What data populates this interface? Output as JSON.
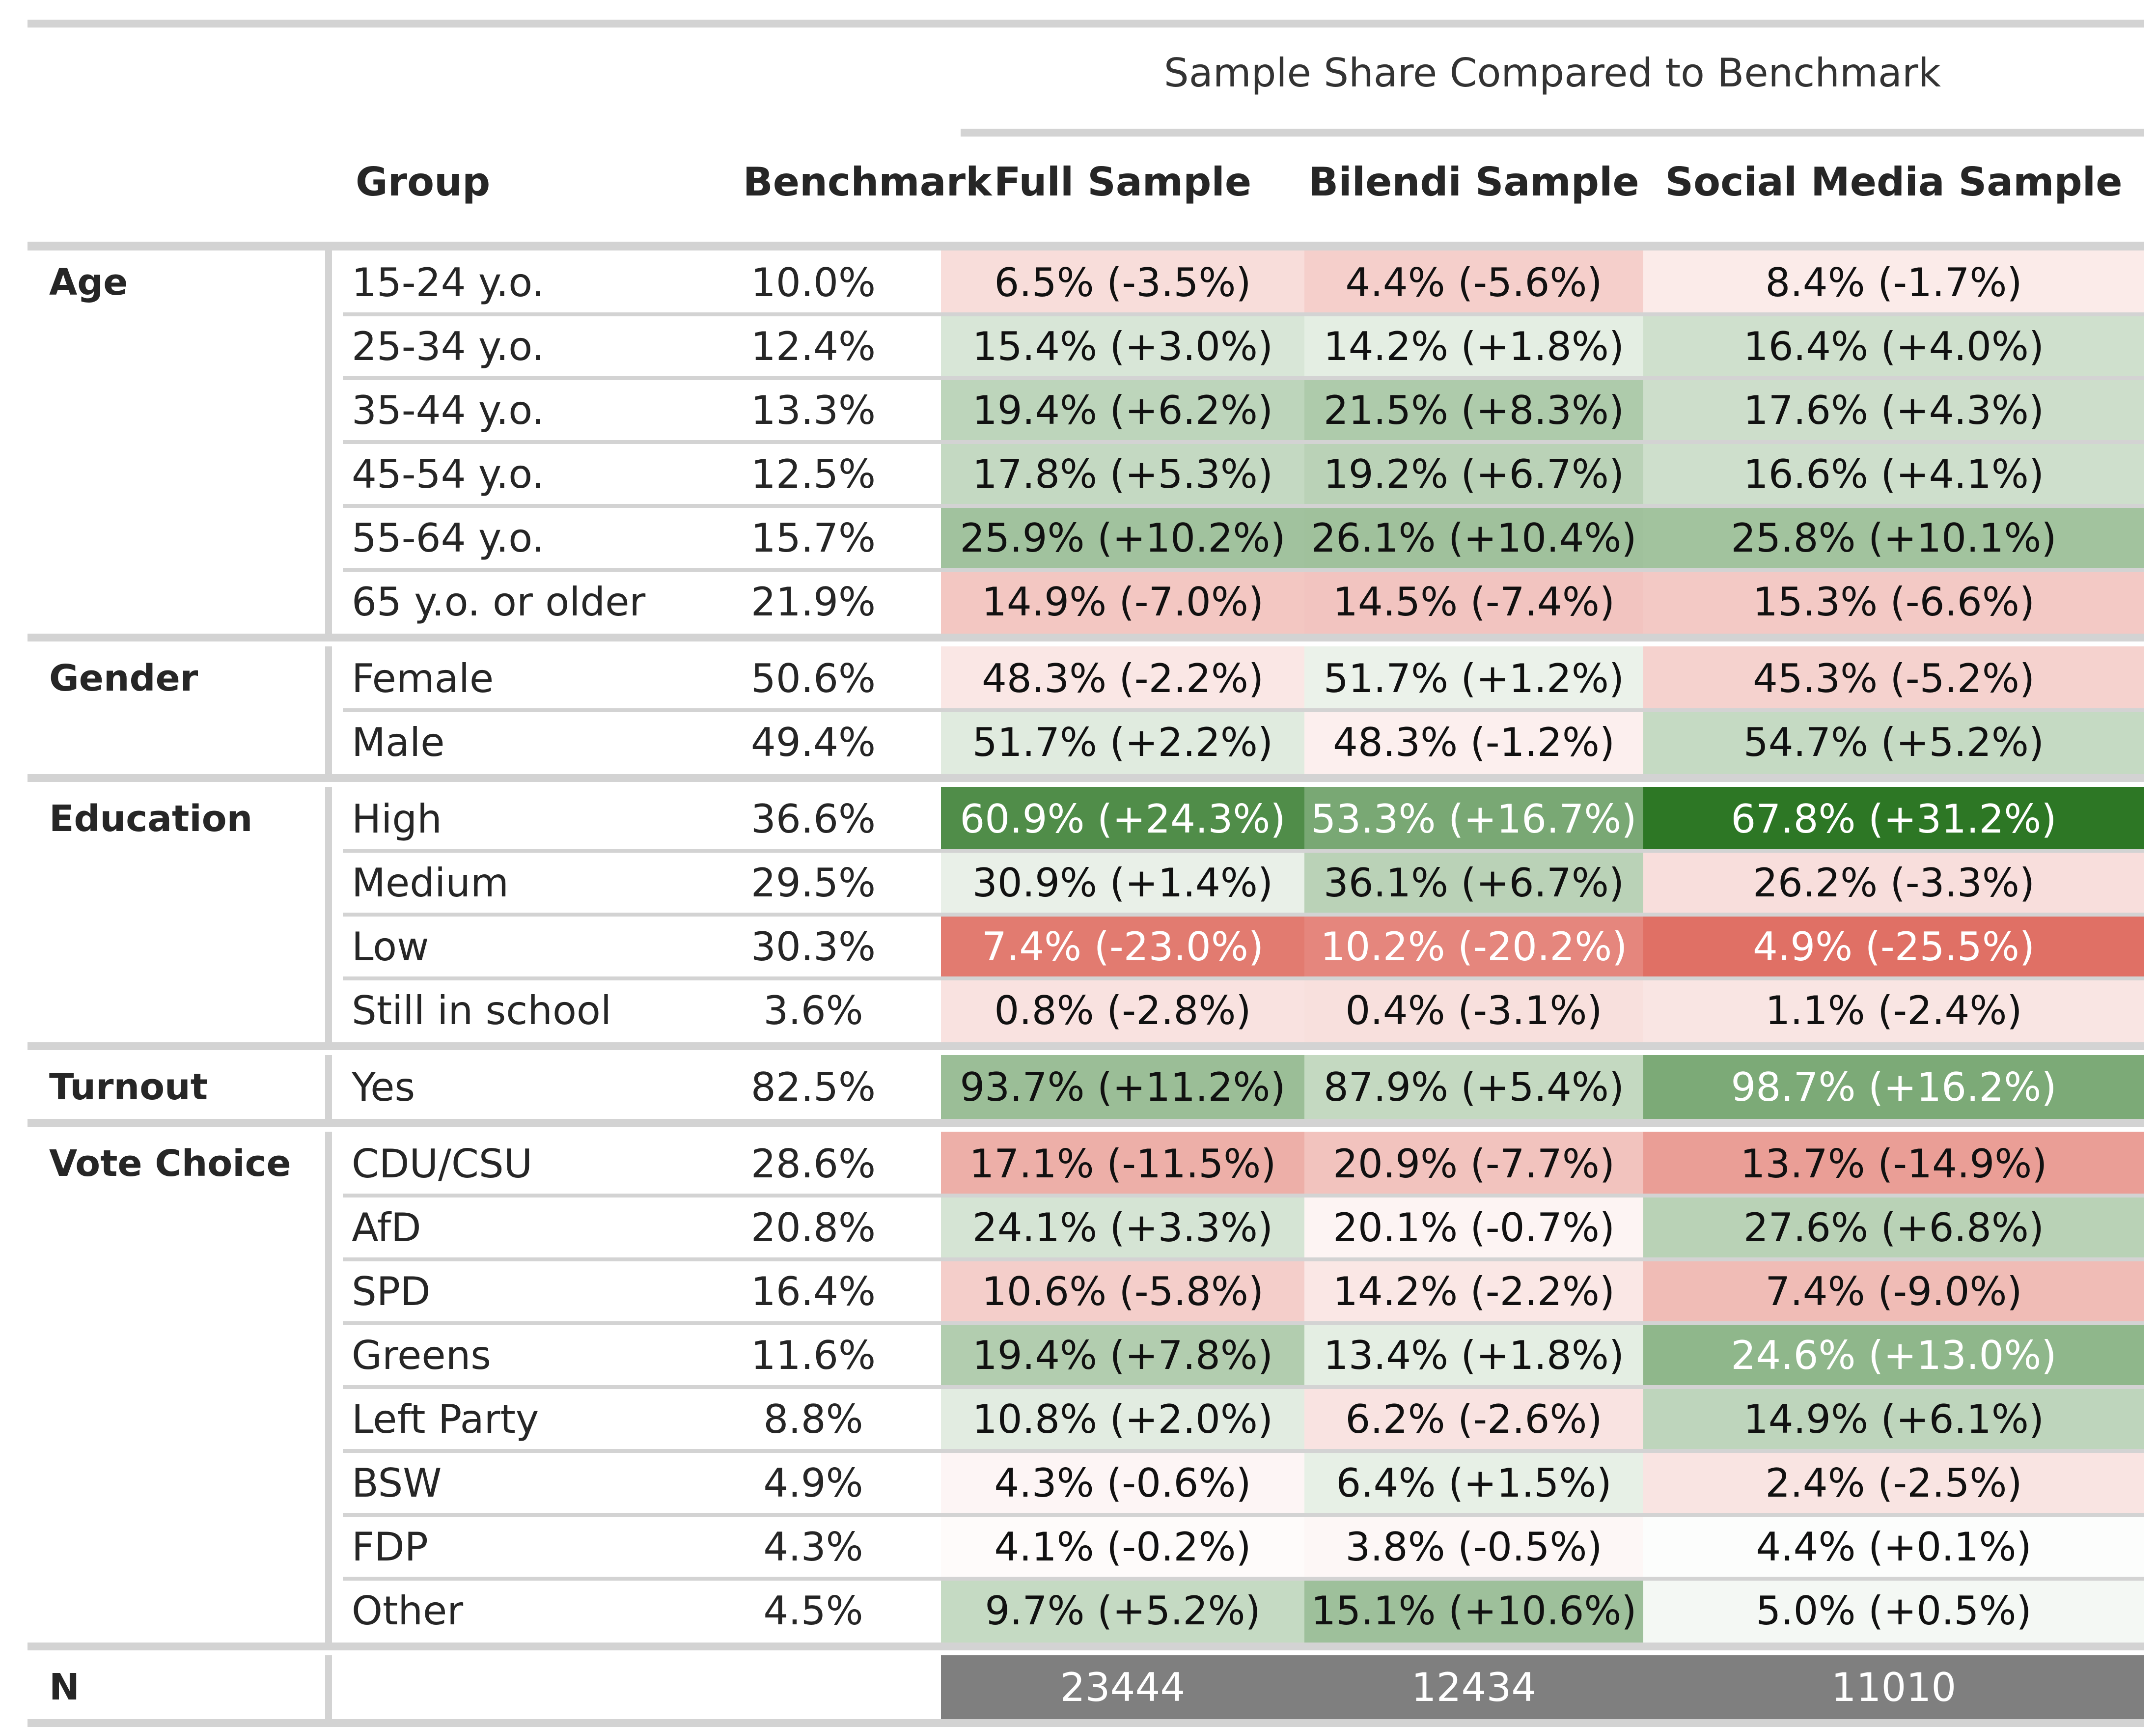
{
  "table": {
    "spanner_label": "Sample Share Compared to Benchmark",
    "columns": {
      "group": "Group",
      "benchmark": "Benchmark",
      "full": "Full Sample",
      "bilendi": "Bilendi Sample",
      "social": "Social Media Sample"
    },
    "sections": [
      {
        "label": "Age",
        "rows": [
          {
            "group": "15-24 y.o.",
            "benchmark": "10.0%",
            "full": "6.5% (-3.5%)",
            "bilendi": "4.4% (-5.6%)",
            "social": "8.4% (-1.7%)",
            "full_diff": -3.5,
            "bilendi_diff": -5.6,
            "social_diff": -1.7
          },
          {
            "group": "25-34 y.o.",
            "benchmark": "12.4%",
            "full": "15.4% (+3.0%)",
            "bilendi": "14.2% (+1.8%)",
            "social": "16.4% (+4.0%)",
            "full_diff": 3.0,
            "bilendi_diff": 1.8,
            "social_diff": 4.0
          },
          {
            "group": "35-44 y.o.",
            "benchmark": "13.3%",
            "full": "19.4% (+6.2%)",
            "bilendi": "21.5% (+8.3%)",
            "social": "17.6% (+4.3%)",
            "full_diff": 6.2,
            "bilendi_diff": 8.3,
            "social_diff": 4.3
          },
          {
            "group": "45-54 y.o.",
            "benchmark": "12.5%",
            "full": "17.8% (+5.3%)",
            "bilendi": "19.2% (+6.7%)",
            "social": "16.6% (+4.1%)",
            "full_diff": 5.3,
            "bilendi_diff": 6.7,
            "social_diff": 4.1
          },
          {
            "group": "55-64 y.o.",
            "benchmark": "15.7%",
            "full": "25.9% (+10.2%)",
            "bilendi": "26.1% (+10.4%)",
            "social": "25.8% (+10.1%)",
            "full_diff": 10.2,
            "bilendi_diff": 10.4,
            "social_diff": 10.1
          },
          {
            "group": "65 y.o. or older",
            "benchmark": "21.9%",
            "full": "14.9% (-7.0%)",
            "bilendi": "14.5% (-7.4%)",
            "social": "15.3% (-6.6%)",
            "full_diff": -7.0,
            "bilendi_diff": -7.4,
            "social_diff": -6.6
          }
        ]
      },
      {
        "label": "Gender",
        "rows": [
          {
            "group": "Female",
            "benchmark": "50.6%",
            "full": "48.3% (-2.2%)",
            "bilendi": "51.7% (+1.2%)",
            "social": "45.3% (-5.2%)",
            "full_diff": -2.2,
            "bilendi_diff": 1.2,
            "social_diff": -5.2
          },
          {
            "group": "Male",
            "benchmark": "49.4%",
            "full": "51.7% (+2.2%)",
            "bilendi": "48.3% (-1.2%)",
            "social": "54.7% (+5.2%)",
            "full_diff": 2.2,
            "bilendi_diff": -1.2,
            "social_diff": 5.2
          }
        ]
      },
      {
        "label": "Education",
        "rows": [
          {
            "group": "High",
            "benchmark": "36.6%",
            "full": "60.9% (+24.3%)",
            "bilendi": "53.3% (+16.7%)",
            "social": "67.8% (+31.2%)",
            "full_diff": 24.3,
            "bilendi_diff": 16.7,
            "social_diff": 31.2
          },
          {
            "group": "Medium",
            "benchmark": "29.5%",
            "full": "30.9% (+1.4%)",
            "bilendi": "36.1% (+6.7%)",
            "social": "26.2% (-3.3%)",
            "full_diff": 1.4,
            "bilendi_diff": 6.7,
            "social_diff": -3.3
          },
          {
            "group": "Low",
            "benchmark": "30.3%",
            "full": "7.4% (-23.0%)",
            "bilendi": "10.2% (-20.2%)",
            "social": "4.9% (-25.5%)",
            "full_diff": -23.0,
            "bilendi_diff": -20.2,
            "social_diff": -25.5
          },
          {
            "group": "Still in school",
            "benchmark": "3.6%",
            "full": "0.8% (-2.8%)",
            "bilendi": "0.4% (-3.1%)",
            "social": "1.1% (-2.4%)",
            "full_diff": -2.8,
            "bilendi_diff": -3.1,
            "social_diff": -2.4
          }
        ]
      },
      {
        "label": "Turnout",
        "rows": [
          {
            "group": "Yes",
            "benchmark": "82.5%",
            "full": "93.7% (+11.2%)",
            "bilendi": "87.9% (+5.4%)",
            "social": "98.7% (+16.2%)",
            "full_diff": 11.2,
            "bilendi_diff": 5.4,
            "social_diff": 16.2
          }
        ]
      },
      {
        "label": "Vote Choice",
        "rows": [
          {
            "group": "CDU/CSU",
            "benchmark": "28.6%",
            "full": "17.1% (-11.5%)",
            "bilendi": "20.9% (-7.7%)",
            "social": "13.7% (-14.9%)",
            "full_diff": -11.5,
            "bilendi_diff": -7.7,
            "social_diff": -14.9
          },
          {
            "group": "AfD",
            "benchmark": "20.8%",
            "full": "24.1% (+3.3%)",
            "bilendi": "20.1% (-0.7%)",
            "social": "27.6% (+6.8%)",
            "full_diff": 3.3,
            "bilendi_diff": -0.7,
            "social_diff": 6.8
          },
          {
            "group": "SPD",
            "benchmark": "16.4%",
            "full": "10.6% (-5.8%)",
            "bilendi": "14.2% (-2.2%)",
            "social": "7.4% (-9.0%)",
            "full_diff": -5.8,
            "bilendi_diff": -2.2,
            "social_diff": -9.0
          },
          {
            "group": "Greens",
            "benchmark": "11.6%",
            "full": "19.4% (+7.8%)",
            "bilendi": "13.4% (+1.8%)",
            "social": "24.6% (+13.0%)",
            "full_diff": 7.8,
            "bilendi_diff": 1.8,
            "social_diff": 13.0
          },
          {
            "group": "Left Party",
            "benchmark": "8.8%",
            "full": "10.8% (+2.0%)",
            "bilendi": "6.2% (-2.6%)",
            "social": "14.9% (+6.1%)",
            "full_diff": 2.0,
            "bilendi_diff": -2.6,
            "social_diff": 6.1
          },
          {
            "group": "BSW",
            "benchmark": "4.9%",
            "full": "4.3% (-0.6%)",
            "bilendi": "6.4% (+1.5%)",
            "social": "2.4% (-2.5%)",
            "full_diff": -0.6,
            "bilendi_diff": 1.5,
            "social_diff": -2.5
          },
          {
            "group": "FDP",
            "benchmark": "4.3%",
            "full": "4.1% (-0.2%)",
            "bilendi": "3.8% (-0.5%)",
            "social": "4.4% (+0.1%)",
            "full_diff": -0.2,
            "bilendi_diff": -0.5,
            "social_diff": 0.1
          },
          {
            "group": "Other",
            "benchmark": "4.5%",
            "full": "9.7% (+5.2%)",
            "bilendi": "15.1% (+10.6%)",
            "social": "5.0% (+0.5%)",
            "full_diff": 5.2,
            "bilendi_diff": 10.6,
            "social_diff": 0.5
          }
        ]
      }
    ],
    "n_row": {
      "label": "N",
      "full": "23444",
      "bilendi": "12434",
      "social": "11010"
    },
    "colors": {
      "positive_max": "#2d7725",
      "negative_max": "#db5a4d",
      "neutral": "#ffffff",
      "n_fill": "#7f7f7f",
      "rule": "#d3d3d3"
    },
    "color_scale_max": 31.2
  }
}
